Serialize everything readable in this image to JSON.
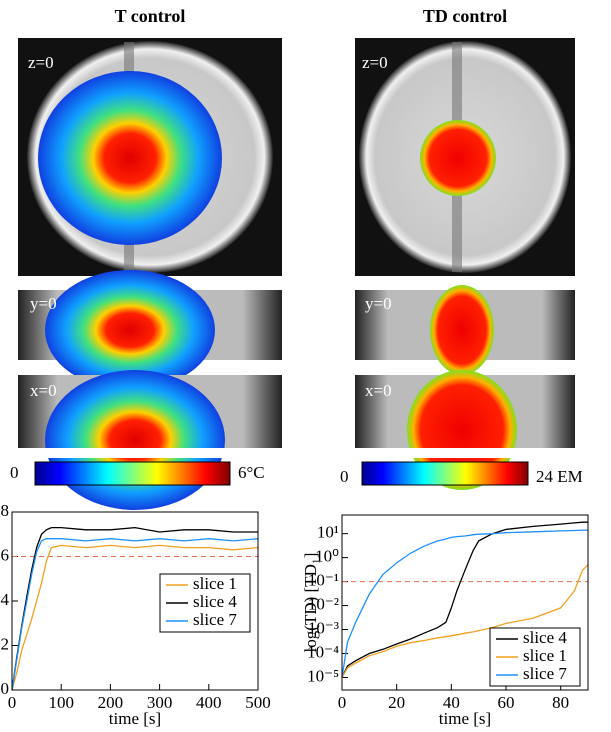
{
  "panels": [
    {
      "title": "T control",
      "views": [
        "z=0",
        "y=0",
        "x=0"
      ],
      "colorbar": [
        "0",
        "6°C"
      ]
    },
    {
      "title": "TD control",
      "views": [
        "z=0",
        "y=0",
        "x=0"
      ],
      "colorbar": [
        "0",
        "24 EM"
      ]
    }
  ],
  "chart_data": [
    {
      "type": "line",
      "xlabel": "time [s]",
      "x": [
        0,
        10,
        20,
        30,
        40,
        50,
        60,
        70,
        80,
        100,
        150,
        200,
        250,
        300,
        350,
        400,
        450,
        500
      ],
      "series": [
        {
          "name": "slice 1",
          "color": "#f0a020",
          "values": [
            0,
            0.8,
            1.8,
            2.5,
            3.2,
            4,
            4.8,
            5.8,
            6.4,
            6.5,
            6.4,
            6.5,
            6.4,
            6.5,
            6.4,
            6.4,
            6.3,
            6.4
          ]
        },
        {
          "name": "slice 4",
          "color": "#000000",
          "values": [
            0,
            1.5,
            2.9,
            4.2,
            5.4,
            6.4,
            7.0,
            7.2,
            7.3,
            7.3,
            7.2,
            7.2,
            7.3,
            7.1,
            7.2,
            7.2,
            7.1,
            7.1
          ]
        },
        {
          "name": "slice 7",
          "color": "#1e90ff",
          "values": [
            0,
            1.4,
            2.8,
            4.0,
            5.2,
            6.2,
            6.7,
            6.8,
            6.8,
            6.8,
            6.7,
            6.8,
            6.7,
            6.8,
            6.7,
            6.8,
            6.7,
            6.8
          ]
        }
      ],
      "reference_line": {
        "value": 6,
        "color": "#e07050"
      },
      "xlim": [
        0,
        500
      ],
      "xticks": [
        0,
        100,
        200,
        300,
        400,
        500
      ],
      "ylim": [
        0,
        8
      ],
      "yticks": [
        0,
        2,
        4,
        6,
        8
      ],
      "legend": "center right"
    },
    {
      "type": "line",
      "xlabel": "time [s]",
      "ylabel": "log(TD) [TD₁]",
      "log_y": true,
      "x": [
        0,
        2,
        5,
        10,
        15,
        20,
        25,
        30,
        35,
        38,
        40,
        42,
        45,
        48,
        50,
        55,
        60,
        70,
        80,
        85,
        88,
        90
      ],
      "series": [
        {
          "name": "slice 4",
          "color": "#000000",
          "values": [
            1e-05,
            3e-05,
            5e-05,
            0.0001,
            0.00015,
            0.00025,
            0.0004,
            0.0007,
            0.0012,
            0.002,
            0.008,
            0.04,
            0.3,
            2,
            5,
            10,
            15,
            20,
            25,
            28,
            30,
            30
          ]
        },
        {
          "name": "slice 1",
          "color": "#f0a020",
          "values": [
            1e-05,
            2.5e-05,
            4e-05,
            8e-05,
            0.00012,
            0.0002,
            0.00028,
            0.00035,
            0.00045,
            0.0005,
            0.00055,
            0.0006,
            0.0007,
            0.0008,
            0.0009,
            0.0012,
            0.0018,
            0.003,
            0.008,
            0.04,
            0.3,
            0.5
          ]
        },
        {
          "name": "slice 7",
          "color": "#1e90ff",
          "values": [
            1e-05,
            0.0003,
            0.002,
            0.03,
            0.2,
            0.6,
            1.5,
            3,
            5,
            6,
            7,
            7.5,
            8,
            9,
            9.5,
            10,
            11,
            12,
            13,
            13.5,
            14,
            14
          ]
        }
      ],
      "reference_line": {
        "value": 0.1,
        "color": "#e07050"
      },
      "xlim": [
        0,
        90
      ],
      "xticks": [
        0,
        20,
        40,
        60,
        80
      ],
      "ylim": [
        3e-06,
        60
      ],
      "yticks": [
        {
          "value": 1e-05,
          "label": "10⁻⁵"
        },
        {
          "value": 0.0001,
          "label": "10⁻⁴"
        },
        {
          "value": 0.001,
          "label": "10⁻³"
        },
        {
          "value": 0.01,
          "label": "10⁻²"
        },
        {
          "value": 0.1,
          "label": "10⁻¹"
        },
        {
          "value": 1,
          "label": "10⁰"
        },
        {
          "value": 10,
          "label": "10¹"
        }
      ],
      "legend": "lower right"
    }
  ]
}
